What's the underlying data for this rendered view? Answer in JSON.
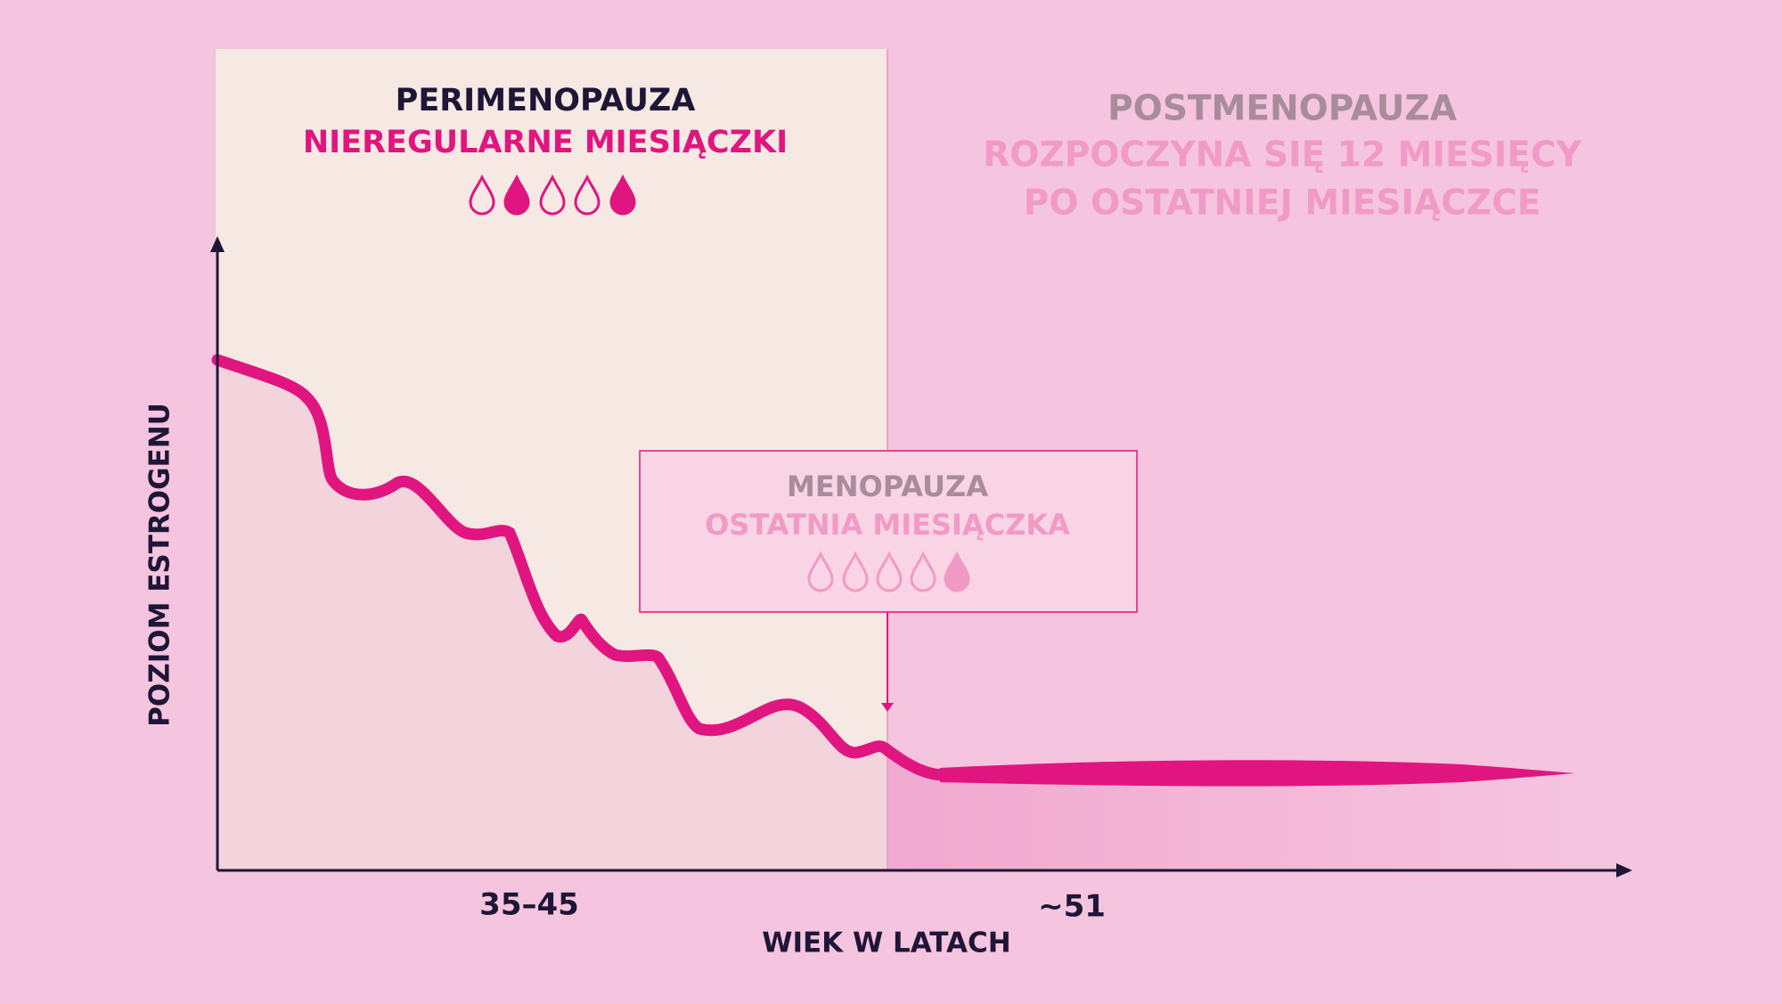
{
  "perimenopause": {
    "title": "PERIMENOPAUZA",
    "subtitle": "NIEREGULARNE MIESIĄCZKI"
  },
  "postmenopause": {
    "title": "POSTMENOPAUZA",
    "subtitle_lines": [
      "ROZPOCZYNA SIĘ 12 MIESIĘCY",
      "PO OSTATNIEJ MIESIĄCZCE"
    ]
  },
  "menopause": {
    "title": "MENOPAUZA",
    "subtitle": "OSTATNIA MIESIĄCZKA"
  },
  "y_axis_label": "POZIOM ESTROGENU",
  "x_axis_label": "WIEK W LATACH",
  "x_labels": [
    "35–45",
    "~51"
  ]
}
